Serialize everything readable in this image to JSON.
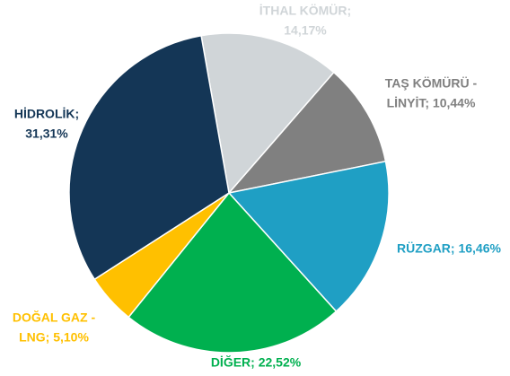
{
  "chart_data": {
    "type": "pie",
    "labels": [
      [
        "İTHAL KÖMÜR;",
        "14,17%"
      ],
      [
        "TAŞ KÖMÜRÜ -",
        "LİNYİT; 10,44%"
      ],
      [
        "RÜZGAR; 16,46%"
      ],
      [
        "DİĞER; 22,52%"
      ],
      [
        "DOĞAL GAZ -",
        "LNG; 5,10%"
      ],
      [
        "HİDROLİK;",
        "31,31%"
      ]
    ],
    "values": [
      14.17,
      10.44,
      16.46,
      22.52,
      5.1,
      31.31
    ],
    "colors": [
      "#d0d5d8",
      "#808080",
      "#1f9fc4",
      "#00b04f",
      "#ffc000",
      "#143656"
    ]
  }
}
